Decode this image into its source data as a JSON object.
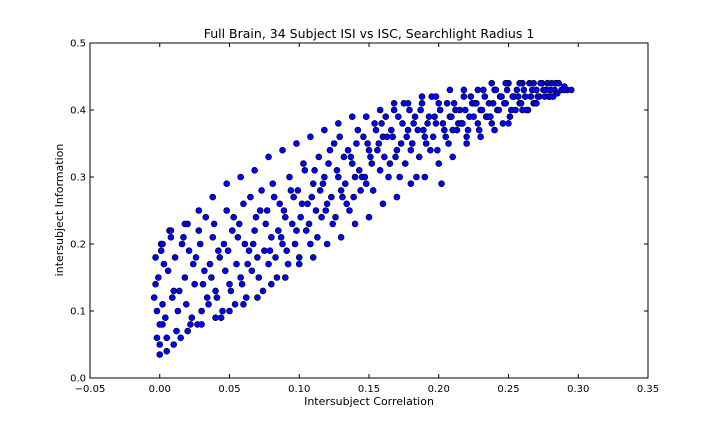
{
  "chart_data": {
    "type": "scatter",
    "title": "Full Brain, 34 Subject ISI vs ISC, Searchlight Radius 1",
    "xlabel": "Intersubject Correlation",
    "ylabel": "intersubject Information",
    "xlim": [
      -0.05,
      0.35
    ],
    "ylim": [
      0.0,
      0.5
    ],
    "x_ticks": [
      -0.05,
      0.0,
      0.05,
      0.1,
      0.15,
      0.2,
      0.25,
      0.3,
      0.35
    ],
    "x_tick_labels": [
      "−0.05",
      "0.00",
      "0.05",
      "0.10",
      "0.15",
      "0.20",
      "0.25",
      "0.30",
      "0.35"
    ],
    "y_ticks": [
      0.0,
      0.1,
      0.2,
      0.3,
      0.4,
      0.5
    ],
    "y_tick_labels": [
      "0.0",
      "0.1",
      "0.2",
      "0.3",
      "0.4",
      "0.5"
    ],
    "grid": false,
    "legend": "none",
    "marker_fill": "#0000ff",
    "marker_edge": "#000000",
    "marker": "circle",
    "series": [
      {
        "x": [
          -0.004,
          -0.003,
          -0.002,
          -0.001,
          0.0,
          0.001,
          0.002,
          0.003,
          -0.003,
          0.0,
          0.002,
          -0.002,
          0.001,
          0.004,
          0.006,
          0.008,
          0.01,
          0.012,
          0.005,
          0.007,
          0.009,
          0.011,
          0.013,
          0.015,
          0.016,
          0.018,
          0.02,
          0.022,
          0.024,
          0.014,
          0.017,
          0.019,
          0.021,
          0.023,
          0.025,
          0.026,
          0.028,
          0.03,
          0.032,
          0.034,
          0.027,
          0.029,
          0.031,
          0.033,
          0.035,
          0.036,
          0.038,
          0.04,
          0.042,
          0.044,
          0.037,
          0.039,
          0.041,
          0.043,
          0.045,
          0.046,
          0.048,
          0.05,
          0.052,
          0.054,
          0.047,
          0.049,
          0.051,
          0.053,
          0.055,
          0.056,
          0.058,
          0.06,
          0.062,
          0.064,
          0.057,
          0.059,
          0.061,
          0.063,
          0.065,
          0.066,
          0.068,
          0.07,
          0.072,
          0.074,
          0.067,
          0.069,
          0.071,
          0.073,
          0.075,
          0.076,
          0.078,
          0.08,
          0.082,
          0.084,
          0.077,
          0.079,
          0.081,
          0.083,
          0.085,
          0.086,
          0.088,
          0.09,
          0.092,
          0.094,
          0.087,
          0.089,
          0.091,
          0.093,
          0.095,
          0.096,
          0.098,
          0.1,
          0.102,
          0.104,
          0.097,
          0.099,
          0.101,
          0.103,
          0.105,
          0.106,
          0.108,
          0.11,
          0.112,
          0.114,
          0.107,
          0.109,
          0.111,
          0.113,
          0.115,
          0.116,
          0.118,
          0.12,
          0.122,
          0.124,
          0.117,
          0.119,
          0.121,
          0.123,
          0.125,
          0.126,
          0.128,
          0.13,
          0.132,
          0.134,
          0.127,
          0.129,
          0.131,
          0.133,
          0.135,
          0.136,
          0.138,
          0.14,
          0.142,
          0.144,
          0.137,
          0.139,
          0.141,
          0.143,
          0.145,
          0.146,
          0.148,
          0.15,
          0.152,
          0.154,
          0.147,
          0.149,
          0.151,
          0.153,
          0.155,
          0.156,
          0.158,
          0.16,
          0.162,
          0.164,
          0.157,
          0.159,
          0.161,
          0.163,
          0.165,
          0.166,
          0.168,
          0.17,
          0.172,
          0.174,
          0.167,
          0.169,
          0.171,
          0.173,
          0.175,
          0.176,
          0.178,
          0.18,
          0.182,
          0.184,
          0.177,
          0.179,
          0.181,
          0.183,
          0.185,
          0.186,
          0.188,
          0.19,
          0.192,
          0.194,
          0.187,
          0.189,
          0.191,
          0.193,
          0.195,
          0.196,
          0.198,
          0.2,
          0.202,
          0.204,
          0.197,
          0.199,
          0.201,
          0.203,
          0.205,
          0.206,
          0.208,
          0.21,
          0.212,
          0.214,
          0.207,
          0.209,
          0.211,
          0.213,
          0.215,
          0.216,
          0.218,
          0.22,
          0.222,
          0.224,
          0.217,
          0.219,
          0.221,
          0.223,
          0.225,
          0.226,
          0.228,
          0.23,
          0.232,
          0.234,
          0.227,
          0.229,
          0.231,
          0.233,
          0.235,
          0.236,
          0.238,
          0.24,
          0.242,
          0.244,
          0.237,
          0.239,
          0.241,
          0.243,
          0.245,
          0.246,
          0.248,
          0.25,
          0.252,
          0.254,
          0.247,
          0.249,
          0.251,
          0.253,
          0.255,
          0.256,
          0.258,
          0.26,
          0.262,
          0.264,
          0.257,
          0.259,
          0.261,
          0.263,
          0.265,
          0.266,
          0.268,
          0.27,
          0.272,
          0.274,
          0.267,
          0.269,
          0.271,
          0.273,
          0.275,
          0.276,
          0.278,
          0.28,
          0.282,
          0.284,
          0.277,
          0.279,
          0.281,
          0.283,
          0.285,
          0.288,
          0.29,
          0.292,
          0.295,
          0.286,
          0.0,
          0.005,
          0.01,
          0.02,
          0.03,
          0.04,
          0.05,
          0.06,
          0.07,
          0.08,
          0.09,
          0.1,
          0.11,
          0.12,
          0.13,
          0.14,
          0.15,
          0.16,
          0.17,
          0.18,
          0.19,
          0.2,
          0.21,
          0.22,
          0.23,
          0.24,
          0.25,
          0.26,
          0.27,
          0.28,
          0.002,
          0.008,
          0.018,
          0.028,
          0.038,
          0.048,
          0.058,
          0.068,
          0.078,
          0.088,
          0.098,
          0.108,
          0.118,
          0.128,
          0.138,
          0.148,
          0.158,
          0.168,
          0.178,
          0.188,
          0.198,
          0.208,
          0.218,
          0.228,
          0.238,
          0.248,
          0.258,
          0.268,
          0.278,
          0.29
        ],
        "y": [
          0.12,
          0.18,
          0.1,
          0.15,
          0.05,
          0.2,
          0.08,
          0.17,
          0.14,
          0.035,
          0.11,
          0.06,
          0.19,
          0.09,
          0.16,
          0.21,
          0.13,
          0.07,
          0.04,
          0.22,
          0.12,
          0.18,
          0.1,
          0.06,
          0.2,
          0.15,
          0.23,
          0.08,
          0.17,
          0.13,
          0.21,
          0.11,
          0.19,
          0.09,
          0.14,
          0.18,
          0.22,
          0.1,
          0.16,
          0.12,
          0.08,
          0.2,
          0.14,
          0.24,
          0.11,
          0.17,
          0.21,
          0.13,
          0.19,
          0.09,
          0.15,
          0.23,
          0.12,
          0.18,
          0.1,
          0.2,
          0.25,
          0.14,
          0.22,
          0.11,
          0.16,
          0.19,
          0.13,
          0.24,
          0.17,
          0.21,
          0.15,
          0.26,
          0.12,
          0.19,
          0.23,
          0.14,
          0.2,
          0.17,
          0.27,
          0.16,
          0.22,
          0.18,
          0.25,
          0.13,
          0.2,
          0.24,
          0.15,
          0.28,
          0.19,
          0.23,
          0.17,
          0.21,
          0.27,
          0.15,
          0.25,
          0.19,
          0.29,
          0.18,
          0.22,
          0.26,
          0.2,
          0.24,
          0.17,
          0.28,
          0.21,
          0.25,
          0.19,
          0.3,
          0.23,
          0.27,
          0.22,
          0.18,
          0.26,
          0.31,
          0.2,
          0.28,
          0.24,
          0.32,
          0.22,
          0.26,
          0.2,
          0.29,
          0.25,
          0.33,
          0.23,
          0.27,
          0.31,
          0.21,
          0.28,
          0.24,
          0.3,
          0.26,
          0.34,
          0.23,
          0.29,
          0.25,
          0.32,
          0.27,
          0.35,
          0.24,
          0.3,
          0.28,
          0.33,
          0.26,
          0.31,
          0.36,
          0.27,
          0.29,
          0.34,
          0.25,
          0.32,
          0.3,
          0.37,
          0.28,
          0.33,
          0.27,
          0.35,
          0.31,
          0.3,
          0.36,
          0.29,
          0.34,
          0.32,
          0.38,
          0.3,
          0.35,
          0.33,
          0.28,
          0.37,
          0.34,
          0.31,
          0.36,
          0.39,
          0.3,
          0.35,
          0.38,
          0.33,
          0.36,
          0.32,
          0.37,
          0.4,
          0.34,
          0.3,
          0.38,
          0.36,
          0.33,
          0.39,
          0.35,
          0.41,
          0.32,
          0.37,
          0.34,
          0.38,
          0.3,
          0.36,
          0.4,
          0.35,
          0.39,
          0.37,
          0.33,
          0.41,
          0.36,
          0.38,
          0.34,
          0.4,
          0.37,
          0.35,
          0.39,
          0.42,
          0.36,
          0.38,
          0.41,
          0.29,
          0.37,
          0.39,
          0.34,
          0.4,
          0.38,
          0.36,
          0.41,
          0.39,
          0.37,
          0.4,
          0.38,
          0.35,
          0.39,
          0.41,
          0.37,
          0.4,
          0.38,
          0.42,
          0.36,
          0.39,
          0.41,
          0.38,
          0.4,
          0.37,
          0.42,
          0.39,
          0.41,
          0.38,
          0.4,
          0.43,
          0.39,
          0.41,
          0.37,
          0.4,
          0.42,
          0.39,
          0.41,
          0.38,
          0.43,
          0.4,
          0.42,
          0.39,
          0.41,
          0.43,
          0.4,
          0.42,
          0.38,
          0.41,
          0.44,
          0.4,
          0.42,
          0.41,
          0.43,
          0.39,
          0.42,
          0.4,
          0.43,
          0.41,
          0.44,
          0.42,
          0.4,
          0.42,
          0.41,
          0.43,
          0.4,
          0.44,
          0.42,
          0.41,
          0.43,
          0.42,
          0.44,
          0.43,
          0.41,
          0.42,
          0.44,
          0.43,
          0.42,
          0.44,
          0.43,
          0.42,
          0.44,
          0.43,
          0.42,
          0.44,
          0.43,
          0.425,
          0.43,
          0.435,
          0.43,
          0.43,
          0.44,
          0.08,
          0.06,
          0.05,
          0.07,
          0.08,
          0.09,
          0.1,
          0.11,
          0.12,
          0.14,
          0.15,
          0.17,
          0.18,
          0.2,
          0.21,
          0.23,
          0.24,
          0.26,
          0.27,
          0.29,
          0.3,
          0.32,
          0.33,
          0.35,
          0.36,
          0.37,
          0.38,
          0.4,
          0.41,
          0.42,
          0.2,
          0.22,
          0.23,
          0.25,
          0.27,
          0.29,
          0.3,
          0.31,
          0.33,
          0.34,
          0.35,
          0.36,
          0.37,
          0.38,
          0.39,
          0.39,
          0.4,
          0.41,
          0.41,
          0.42,
          0.42,
          0.43,
          0.43,
          0.43,
          0.44,
          0.44,
          0.44,
          0.44,
          0.44,
          0.43
        ]
      }
    ]
  }
}
